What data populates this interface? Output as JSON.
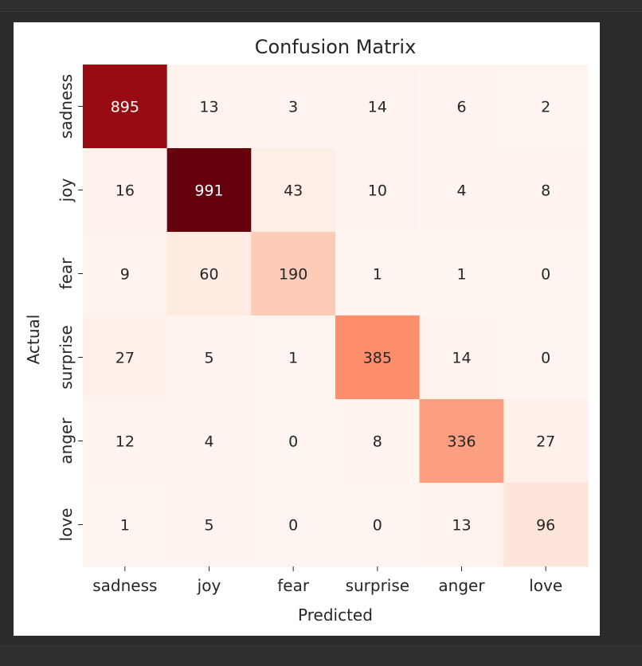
{
  "chart_data": {
    "type": "heatmap",
    "title": "Confusion Matrix",
    "xlabel": "Predicted",
    "ylabel": "Actual",
    "x_categories": [
      "sadness",
      "joy",
      "fear",
      "surprise",
      "anger",
      "love"
    ],
    "y_categories": [
      "sadness",
      "joy",
      "fear",
      "surprise",
      "anger",
      "love"
    ],
    "values": [
      [
        895,
        13,
        3,
        14,
        6,
        2
      ],
      [
        16,
        991,
        43,
        10,
        4,
        8
      ],
      [
        9,
        60,
        190,
        1,
        1,
        0
      ],
      [
        27,
        5,
        1,
        385,
        14,
        0
      ],
      [
        12,
        4,
        0,
        8,
        336,
        27
      ],
      [
        1,
        5,
        0,
        0,
        13,
        96
      ]
    ],
    "colormap": "Reds",
    "color_low": "#fff5f0",
    "color_high": "#67000d",
    "colorbar": false
  }
}
